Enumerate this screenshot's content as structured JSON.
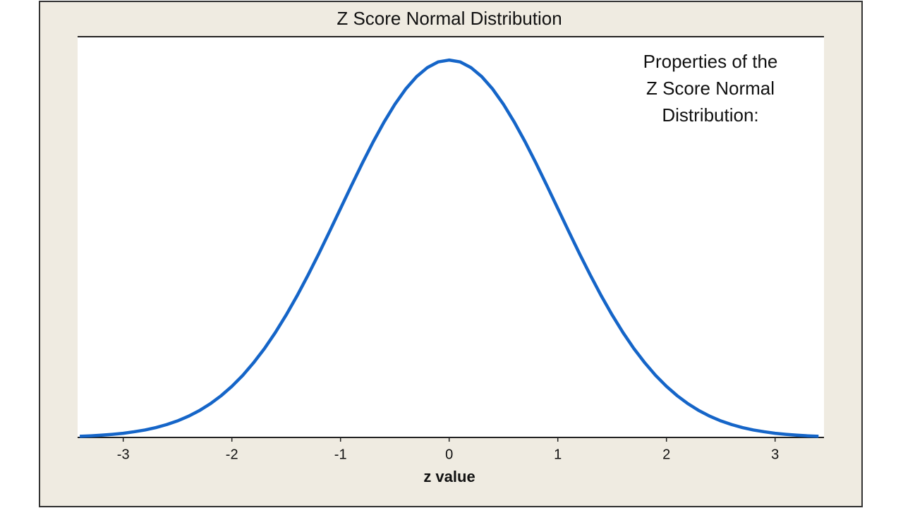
{
  "chart_data": {
    "type": "line",
    "title": "Z Score Normal Distribution",
    "x_label": "z value",
    "annotation": [
      "Properties of the",
      "Z Score Normal",
      "Distribution:"
    ],
    "x": [
      -3.4,
      -3.3,
      -3.2,
      -3.1,
      -3.0,
      -2.9,
      -2.8,
      -2.7,
      -2.6,
      -2.5,
      -2.4,
      -2.3,
      -2.2,
      -2.1,
      -2.0,
      -1.9,
      -1.8,
      -1.7,
      -1.6,
      -1.5,
      -1.4,
      -1.3,
      -1.2,
      -1.1,
      -1.0,
      -0.9,
      -0.8,
      -0.7,
      -0.6,
      -0.5,
      -0.4,
      -0.3,
      -0.2,
      -0.1,
      0,
      0.1,
      0.2,
      0.3,
      0.4,
      0.5,
      0.6,
      0.7,
      0.8,
      0.9,
      1.0,
      1.1,
      1.2,
      1.3,
      1.4,
      1.5,
      1.6,
      1.7,
      1.8,
      1.9,
      2.0,
      2.1,
      2.2,
      2.3,
      2.4,
      2.5,
      2.6,
      2.7,
      2.8,
      2.9,
      3.0,
      3.1,
      3.2,
      3.3,
      3.4
    ],
    "values": [
      0.0012,
      0.0017,
      0.0024,
      0.0033,
      0.0044,
      0.006,
      0.0079,
      0.0104,
      0.0136,
      0.0175,
      0.0224,
      0.0283,
      0.0355,
      0.044,
      0.054,
      0.0656,
      0.079,
      0.094,
      0.1109,
      0.1295,
      0.1497,
      0.1714,
      0.1942,
      0.2179,
      0.242,
      0.2661,
      0.2897,
      0.3123,
      0.3332,
      0.3521,
      0.3683,
      0.3814,
      0.391,
      0.397,
      0.3989,
      0.397,
      0.391,
      0.3814,
      0.3683,
      0.3521,
      0.3332,
      0.3123,
      0.2897,
      0.2661,
      0.242,
      0.2179,
      0.1942,
      0.1714,
      0.1497,
      0.1295,
      0.1109,
      0.094,
      0.079,
      0.0656,
      0.054,
      0.044,
      0.0355,
      0.0283,
      0.0224,
      0.0175,
      0.0136,
      0.0104,
      0.0079,
      0.006,
      0.0044,
      0.0033,
      0.0024,
      0.0017,
      0.0012
    ],
    "color": "#1565c8",
    "xlim": [
      -3.42,
      3.45
    ],
    "xticks": [
      -3,
      -2,
      -1,
      0,
      1,
      2,
      3
    ],
    "ylim": [
      0,
      0.4236
    ]
  }
}
